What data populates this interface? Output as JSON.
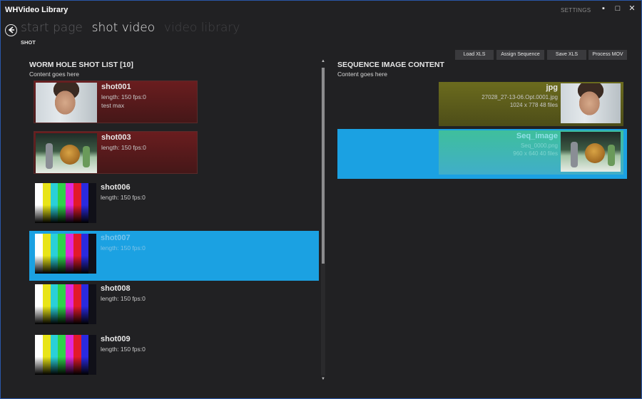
{
  "window": {
    "title": "WHVideo Library",
    "settings_label": "SETTINGS",
    "controls": {
      "minimize": "▪",
      "maximize": "□",
      "close": "✕"
    }
  },
  "nav": {
    "back_icon": "back-arrow-icon",
    "crumbs": [
      "start page",
      "shot video",
      "video library"
    ],
    "subtitle": "SHOT"
  },
  "toolbar": {
    "load_xls": "Load XLS",
    "assign_sequence": "Assign Sequence",
    "save_xls": "Save XLS",
    "process_mov": "Process MOV"
  },
  "shot_list": {
    "title": "WORM HOLE SHOT LIST [10]",
    "subtitle": "Content goes here",
    "items": [
      {
        "name": "shot001",
        "meta": "length: 150 fps:0",
        "note": "test max",
        "thumb": "face",
        "style": "red",
        "selected": false
      },
      {
        "name": "shot003",
        "meta": "length: 150 fps:0",
        "note": "",
        "thumb": "scene",
        "style": "red",
        "selected": false
      },
      {
        "name": "shot006",
        "meta": "length: 150 fps:0",
        "note": "",
        "thumb": "bars",
        "style": "plain",
        "selected": false
      },
      {
        "name": "shot007",
        "meta": "length: 150 fps:0",
        "note": "",
        "thumb": "bars",
        "style": "plain",
        "selected": true
      },
      {
        "name": "shot008",
        "meta": "length: 150 fps:0",
        "note": "",
        "thumb": "bars",
        "style": "plain",
        "selected": false
      },
      {
        "name": "shot009",
        "meta": "length: 150 fps:0",
        "note": "",
        "thumb": "bars",
        "style": "plain",
        "selected": false
      }
    ]
  },
  "sequence": {
    "title": "SEQUENCE IMAGE CONTENT",
    "subtitle": "Content goes here",
    "items": [
      {
        "name": "jpg",
        "file": "27028_27-13-06.Opt.0001.jpg",
        "info": "1024 x 778  48 files",
        "thumb": "face",
        "style": "olive",
        "selected": false
      },
      {
        "name": "Seq_image",
        "file": "Seq_0000.png",
        "info": "960 x 640  40 files",
        "thumb": "scene",
        "style": "teal",
        "selected": true
      }
    ]
  },
  "colors": {
    "accent": "#1ba1e2",
    "background": "#212123",
    "card_red": "#5a1c1e",
    "card_olive": "#5c5c1b",
    "card_teal": "#40b8b0"
  },
  "colorbars": [
    "#ffffff",
    "#e8e418",
    "#2ad0d8",
    "#30d24a",
    "#e02ad8",
    "#e21a2a",
    "#2a2ae0",
    "#101018"
  ],
  "scroll": {
    "position": 0.0,
    "visible_fraction": 0.62
  }
}
